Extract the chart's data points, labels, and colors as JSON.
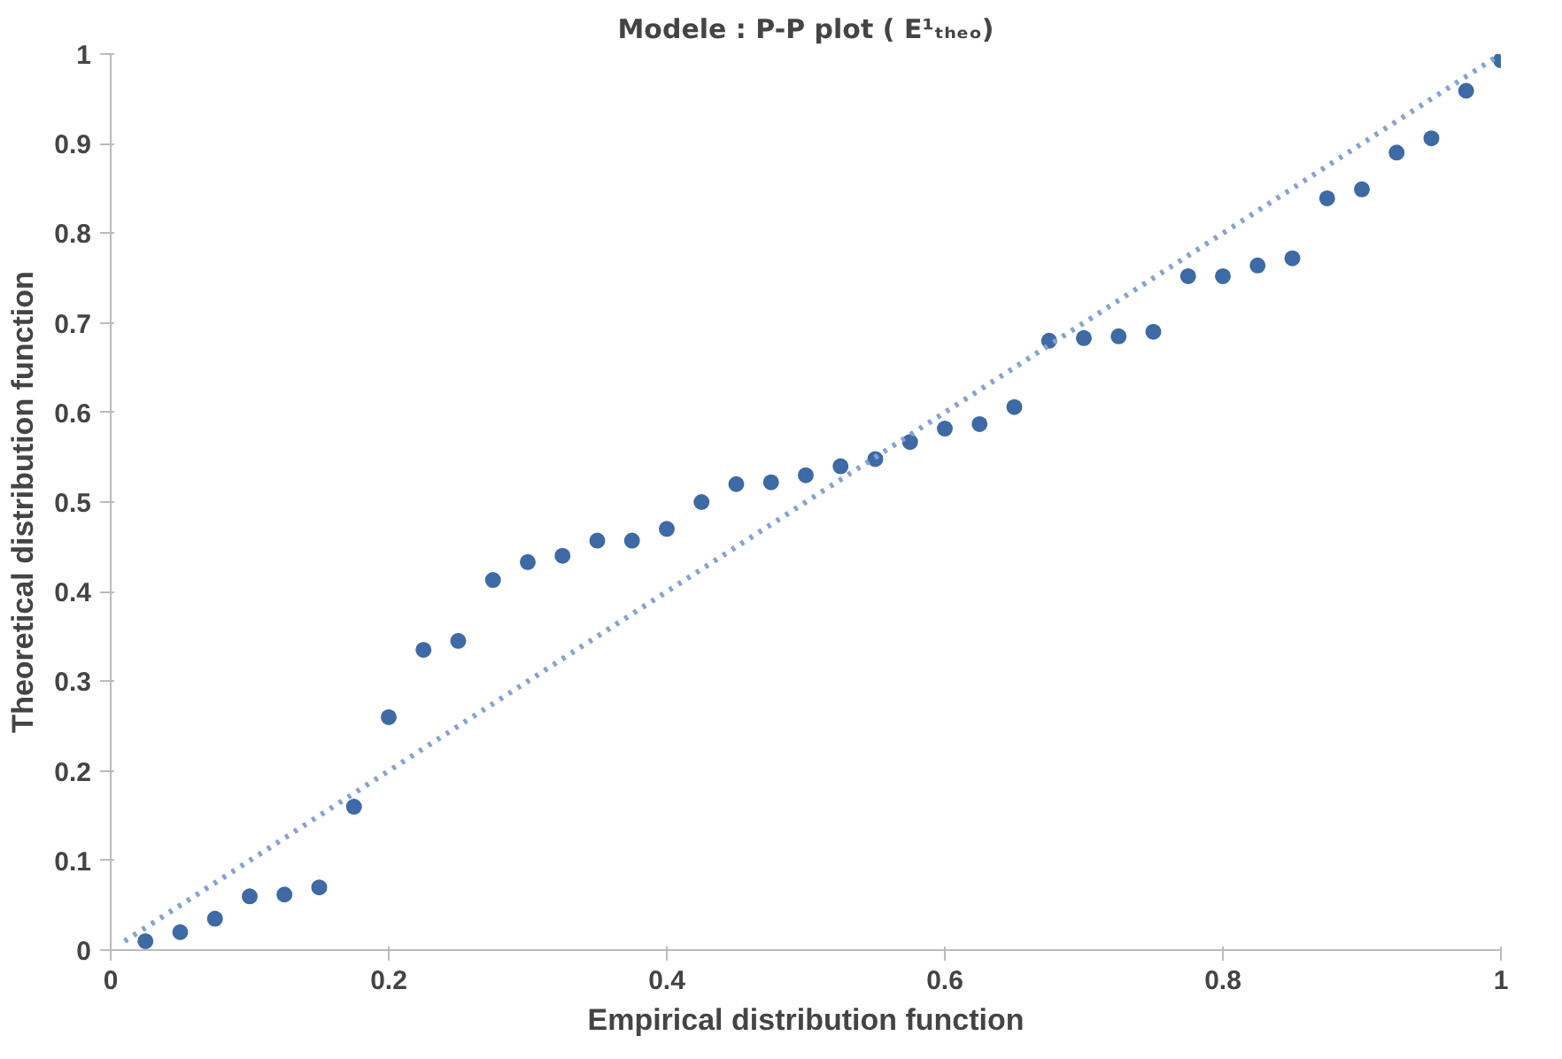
{
  "chart_data": {
    "type": "scatter",
    "title": "Modele : P-P plot ( E¹ₜₕₑₒ)",
    "xlabel": "Empirical distribution function",
    "ylabel": "Theoretical distribution function",
    "x": [
      0.025,
      0.05,
      0.075,
      0.1,
      0.125,
      0.15,
      0.175,
      0.2,
      0.225,
      0.25,
      0.275,
      0.3,
      0.325,
      0.35,
      0.375,
      0.4,
      0.425,
      0.45,
      0.475,
      0.5,
      0.525,
      0.55,
      0.575,
      0.6,
      0.625,
      0.65,
      0.675,
      0.7,
      0.725,
      0.75,
      0.775,
      0.8,
      0.825,
      0.85,
      0.875,
      0.9,
      0.925,
      0.95,
      0.975,
      1.0
    ],
    "series": [
      {
        "color": "#3e6aa6",
        "marker": "circle",
        "values": [
          0.01,
          0.02,
          0.035,
          0.06,
          0.062,
          0.07,
          0.16,
          0.26,
          0.335,
          0.345,
          0.413,
          0.433,
          0.44,
          0.457,
          0.457,
          0.47,
          0.5,
          0.52,
          0.522,
          0.53,
          0.54,
          0.548,
          0.567,
          0.582,
          0.587,
          0.606,
          0.68,
          0.683,
          0.685,
          0.69,
          0.752,
          0.752,
          0.764,
          0.772,
          0.839,
          0.849,
          0.89,
          0.906,
          0.959,
          0.993
        ]
      },
      {
        "type": "line",
        "color": "#86a2d2",
        "line_style": "dotted",
        "marker": "none",
        "x": [
          0.01,
          1.0
        ],
        "values": [
          0.01,
          1.0
        ]
      }
    ],
    "xlim": [
      0,
      1
    ],
    "ylim": [
      0,
      1
    ],
    "xticks": [
      0,
      0.2,
      0.4,
      0.6,
      0.8,
      1
    ],
    "yticks": [
      0,
      0.1,
      0.2,
      0.3,
      0.4,
      0.5,
      0.6,
      0.7,
      0.8,
      0.9,
      1
    ],
    "grid": false
  }
}
